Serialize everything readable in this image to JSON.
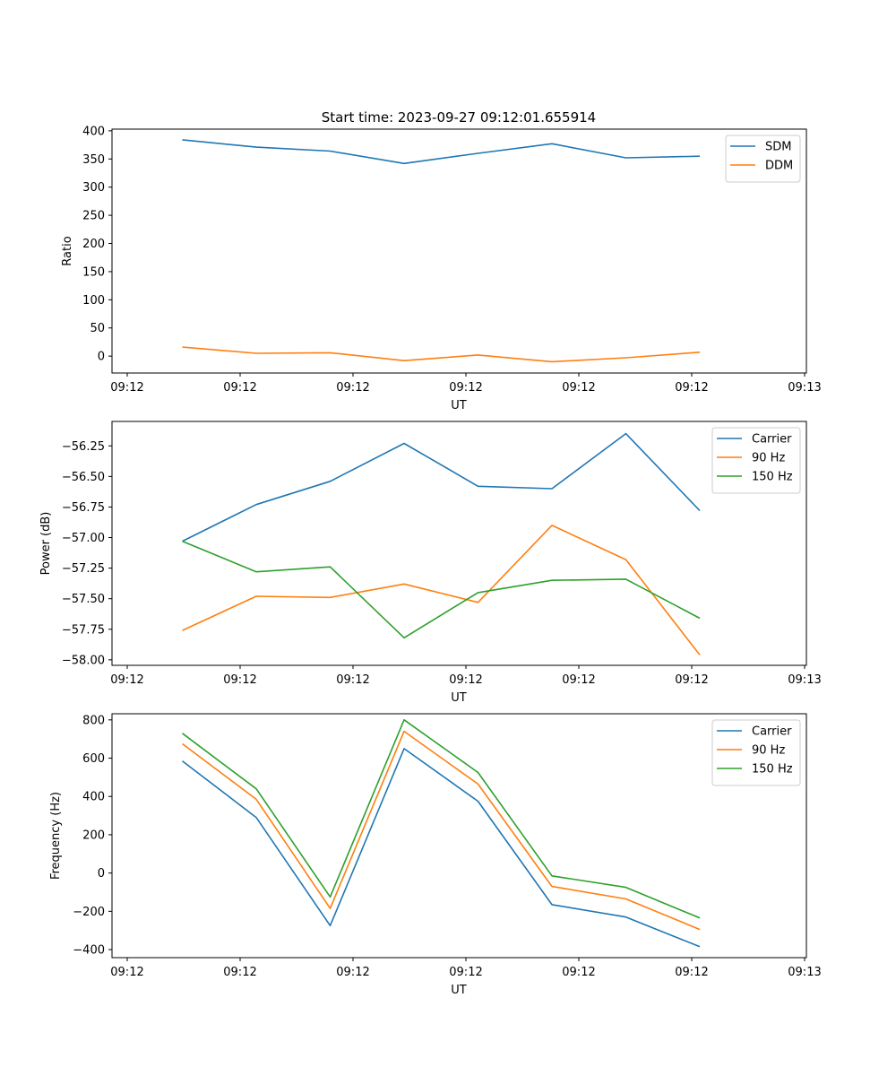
{
  "figure": {
    "title": "Start time: 2023-09-27 09:12:01.655914"
  },
  "chart_data": [
    {
      "type": "line",
      "title": "Start time: 2023-09-27 09:12:01.655914",
      "xlabel": "UT",
      "ylabel": "Ratio",
      "x_tick_labels": [
        "09:12",
        "09:12",
        "09:12",
        "09:12",
        "09:12",
        "09:12",
        "09:13"
      ],
      "y_ticks": [
        0,
        50,
        100,
        150,
        200,
        250,
        300,
        350,
        400
      ],
      "y_tick_labels": [
        "0",
        "50",
        "100",
        "150",
        "200",
        "250",
        "300",
        "350",
        "400"
      ],
      "ylim": [
        -30,
        403
      ],
      "legend_position": "top-right",
      "series": [
        {
          "name": "SDM",
          "color": "#1f77b4",
          "values": [
            384,
            371,
            364,
            342,
            360,
            377,
            352,
            355
          ]
        },
        {
          "name": "DDM",
          "color": "#ff7f0e",
          "values": [
            16,
            5,
            6,
            -8,
            2,
            -10,
            -3,
            7
          ]
        }
      ]
    },
    {
      "type": "line",
      "title": "",
      "xlabel": "UT",
      "ylabel": "Power (dB)",
      "x_tick_labels": [
        "09:12",
        "09:12",
        "09:12",
        "09:12",
        "09:12",
        "09:12",
        "09:13"
      ],
      "y_ticks": [
        -58.0,
        -57.75,
        -57.5,
        -57.25,
        -57.0,
        -56.75,
        -56.5,
        -56.25
      ],
      "y_tick_labels": [
        "−58.00",
        "−57.75",
        "−57.50",
        "−57.25",
        "−57.00",
        "−56.75",
        "−56.50",
        "−56.25"
      ],
      "ylim": [
        -58.045,
        -56.05
      ],
      "legend_position": "top-right",
      "series": [
        {
          "name": "Carrier",
          "color": "#1f77b4",
          "values": [
            -57.03,
            -56.73,
            -56.54,
            -56.23,
            -56.58,
            -56.6,
            -56.15,
            -56.78
          ]
        },
        {
          "name": "90 Hz",
          "color": "#ff7f0e",
          "values": [
            -57.76,
            -57.48,
            -57.49,
            -57.38,
            -57.53,
            -56.9,
            -57.18,
            -57.96
          ]
        },
        {
          "name": "150 Hz",
          "color": "#2ca02c",
          "values": [
            -57.03,
            -57.28,
            -57.24,
            -57.82,
            -57.45,
            -57.35,
            -57.34,
            -57.66
          ]
        }
      ]
    },
    {
      "type": "line",
      "title": "",
      "xlabel": "UT",
      "ylabel": "Frequency (Hz)",
      "x_tick_labels": [
        "09:12",
        "09:12",
        "09:12",
        "09:12",
        "09:12",
        "09:12",
        "09:13"
      ],
      "y_ticks": [
        -400,
        -200,
        0,
        200,
        400,
        600,
        800
      ],
      "y_tick_labels": [
        "−400",
        "−200",
        "0",
        "200",
        "400",
        "600",
        "800"
      ],
      "ylim": [
        -442,
        832
      ],
      "legend_position": "top-right",
      "series": [
        {
          "name": "Carrier",
          "color": "#1f77b4",
          "values": [
            585,
            290,
            -275,
            650,
            375,
            -165,
            -230,
            -385
          ]
        },
        {
          "name": "90 Hz",
          "color": "#ff7f0e",
          "values": [
            675,
            385,
            -185,
            740,
            465,
            -70,
            -135,
            -295
          ]
        },
        {
          "name": "150 Hz",
          "color": "#2ca02c",
          "values": [
            730,
            440,
            -125,
            800,
            525,
            -15,
            -75,
            -235
          ]
        }
      ]
    }
  ]
}
